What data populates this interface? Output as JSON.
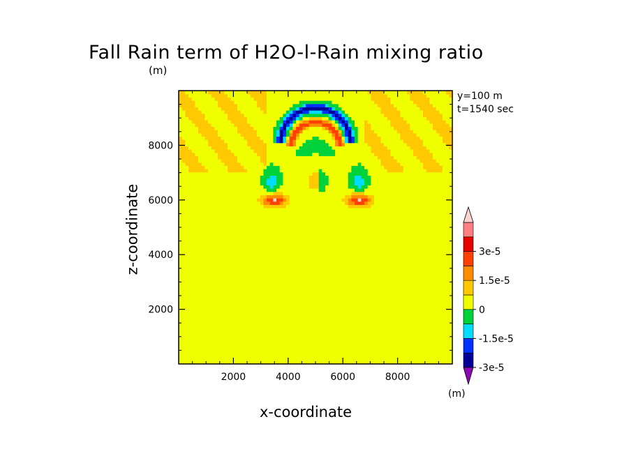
{
  "chart_data": {
    "type": "heatmap",
    "title": "Fall Rain term of H2O-l-Rain mixing ratio",
    "xlabel": "x-coordinate",
    "ylabel": "z-coordinate",
    "yunits": "(m)",
    "colorbar_units": "(m)",
    "annotations": [
      "y=100 m",
      "t=1540 sec"
    ],
    "xlim": [
      0,
      10000
    ],
    "ylim": [
      0,
      10000
    ],
    "xticks": [
      2000,
      4000,
      6000,
      8000
    ],
    "yticks": [
      2000,
      4000,
      6000,
      8000
    ],
    "colorbar": {
      "levels": [
        -3e-05,
        -2.25e-05,
        -1.5e-05,
        -7.5e-06,
        0,
        7.5e-06,
        1.5e-05,
        2.25e-05,
        3e-05
      ],
      "labels": [
        "3e-5",
        "1.5e-5",
        "0",
        "-1.5e-5",
        "-3e-5"
      ],
      "colors": [
        "#8c0ab4",
        "#000096",
        "#0032ff",
        "#00dcff",
        "#00d23c",
        "#f0ff00",
        "#ffc800",
        "#ff8c00",
        "#ff4000",
        "#e60000",
        "#ff8080",
        "#ffd2d2"
      ]
    },
    "features": [
      {
        "name": "upper-negative-arc",
        "center_x": 5000,
        "center_z": 8100,
        "outer_radius": 1500,
        "inner_radius": 900,
        "min_value": -2.6e-05
      },
      {
        "name": "upper-positive-arc",
        "center_x": 5000,
        "center_z": 7950,
        "outer_radius": 1150,
        "inner_radius": 500,
        "max_value": 2.6e-05
      },
      {
        "name": "left-negative-lobe",
        "center_x": 3400,
        "center_z": 6700,
        "min_value": -1.2e-05
      },
      {
        "name": "right-negative-lobe",
        "center_x": 6600,
        "center_z": 6700,
        "min_value": -1.2e-05
      },
      {
        "name": "left-positive-blob",
        "center_x": 3500,
        "center_z": 6000,
        "max_value": 3e-05
      },
      {
        "name": "right-positive-blob",
        "center_x": 6600,
        "center_z": 6000,
        "max_value": 3e-05
      }
    ]
  }
}
